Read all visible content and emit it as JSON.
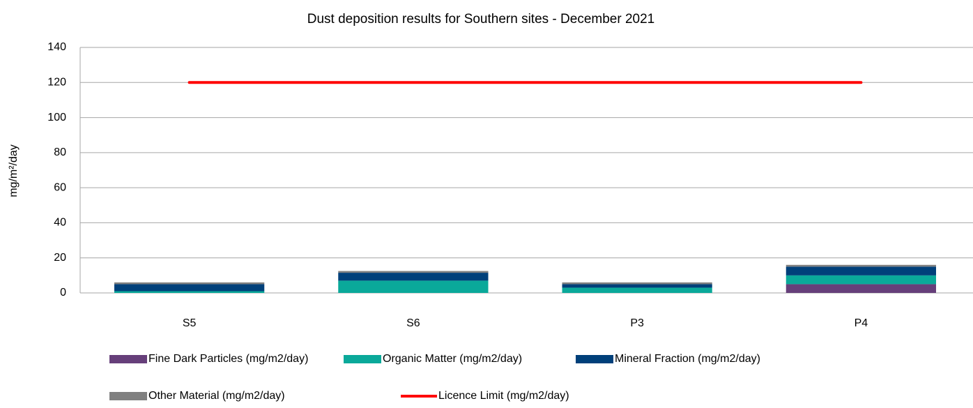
{
  "chart_data": {
    "type": "bar",
    "stacked": true,
    "title": "Dust deposition results for Southern sites - December 2021",
    "y_label": "mg/m²/day",
    "categories": [
      "S5",
      "S6",
      "P3",
      "P4"
    ],
    "series": [
      {
        "name": "Fine Dark Particles (mg/m2/day)",
        "color": "#663f7a",
        "values": [
          0,
          0,
          0,
          5
        ]
      },
      {
        "name": "Organic Matter (mg/m2/day)",
        "color": "#0aa99a",
        "values": [
          1,
          7,
          3,
          5
        ]
      },
      {
        "name": "Mineral Fraction (mg/m2/day)",
        "color": "#00407a",
        "values": [
          4,
          4.5,
          2,
          5
        ]
      },
      {
        "name": "Other Material (mg/m2/day)",
        "color": "#808080",
        "values": [
          1,
          1,
          1,
          1
        ]
      },
      {
        "name": "Licence Limit  (mg/m2/day)",
        "color": "#ff0000",
        "type": "line",
        "values": [
          120,
          120,
          120,
          120
        ]
      }
    ],
    "ylim": [
      0,
      140
    ],
    "yticks": [
      0,
      20,
      40,
      60,
      80,
      100,
      120,
      140
    ],
    "grid": true
  }
}
